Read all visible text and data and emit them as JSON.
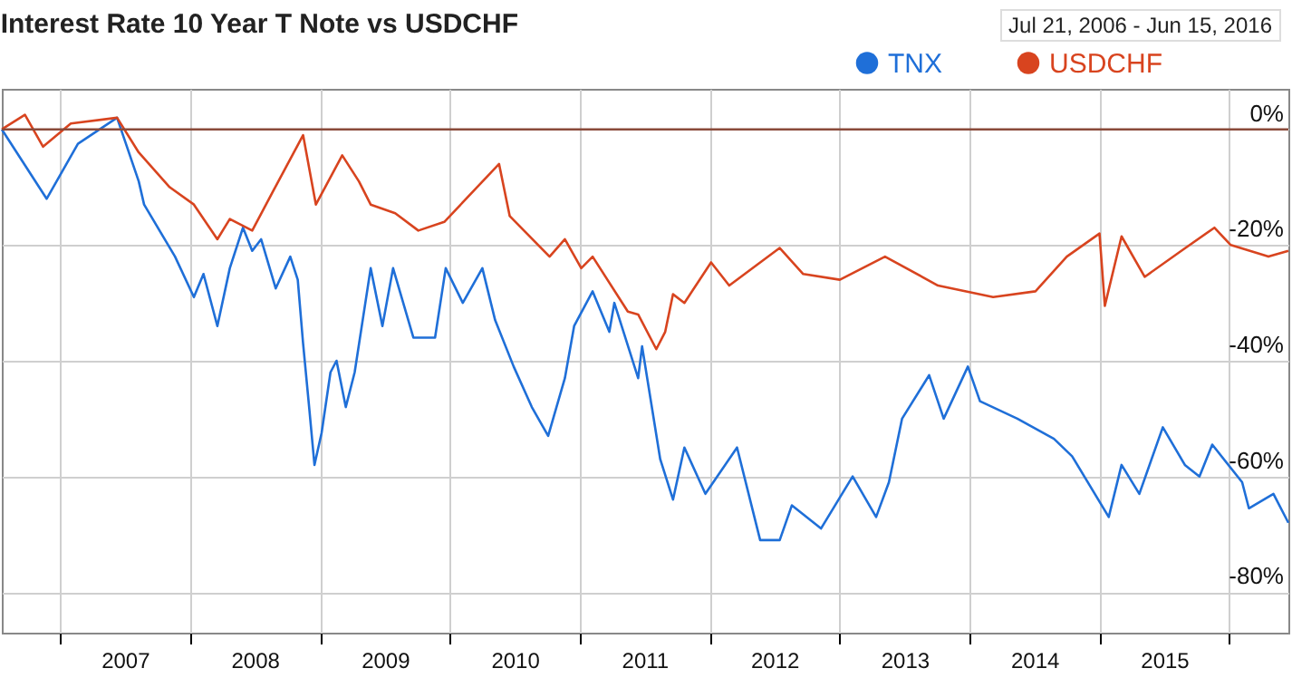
{
  "chart_data": {
    "type": "line",
    "title": "Interest Rate 10 Year T Note vs USDCHF",
    "annotations": [
      "Jul 21, 2006 - Jun 15, 2016"
    ],
    "xlim": [
      "2006-07-21",
      "2016-06-15"
    ],
    "xticks": [
      {
        "value": "2007-01-01",
        "label": null
      },
      {
        "value": "2007-07-02",
        "label": "2007"
      },
      {
        "value": "2008-01-01",
        "label": null
      },
      {
        "value": "2008-07-01",
        "label": "2008"
      },
      {
        "value": "2009-01-01",
        "label": null
      },
      {
        "value": "2009-07-02",
        "label": "2009"
      },
      {
        "value": "2010-01-01",
        "label": null
      },
      {
        "value": "2010-07-02",
        "label": "2010"
      },
      {
        "value": "2011-01-01",
        "label": null
      },
      {
        "value": "2011-07-02",
        "label": "2011"
      },
      {
        "value": "2012-01-01",
        "label": null
      },
      {
        "value": "2012-07-01",
        "label": "2012"
      },
      {
        "value": "2013-01-01",
        "label": null
      },
      {
        "value": "2013-07-02",
        "label": "2013"
      },
      {
        "value": "2014-01-01",
        "label": null
      },
      {
        "value": "2014-07-02",
        "label": "2014"
      },
      {
        "value": "2015-01-01",
        "label": null
      },
      {
        "value": "2015-07-02",
        "label": "2015"
      },
      {
        "value": "2016-01-01",
        "label": null
      }
    ],
    "ylim": [
      -87,
      7
    ],
    "yticks": [
      {
        "value": 0,
        "label": "0%"
      },
      {
        "value": -20,
        "label": "-20%"
      },
      {
        "value": -40,
        "label": "-40%"
      },
      {
        "value": -60,
        "label": "-60%"
      },
      {
        "value": -80,
        "label": "-80%"
      }
    ],
    "grid": true,
    "legend": "top right",
    "line_style": "solid",
    "ref_lines": [
      {
        "axis": "y",
        "value": 0,
        "color": "#8a4a3a"
      }
    ],
    "series": [
      {
        "name": "TNX",
        "color": "#1f6fd8",
        "x": [
          "2006-07-21",
          "2006-11-24",
          "2007-02-20",
          "2007-06-10",
          "2007-08-10",
          "2007-08-25",
          "2007-11-20",
          "2008-01-12",
          "2008-02-08",
          "2008-03-18",
          "2008-04-22",
          "2008-05-29",
          "2008-06-24",
          "2008-07-19",
          "2008-08-29",
          "2008-10-09",
          "2008-10-30",
          "2008-11-14",
          "2008-12-01",
          "2008-12-16",
          "2009-01-05",
          "2009-01-30",
          "2009-02-16",
          "2009-03-14",
          "2009-04-08",
          "2009-05-23",
          "2009-06-25",
          "2009-07-25",
          "2009-09-20",
          "2009-11-20",
          "2009-12-20",
          "2010-02-06",
          "2010-04-02",
          "2010-05-08",
          "2010-06-29",
          "2010-08-19",
          "2010-10-04",
          "2010-11-20",
          "2010-12-16",
          "2011-02-06",
          "2011-03-25",
          "2011-04-08",
          "2011-06-14",
          "2011-06-25",
          "2011-08-15",
          "2011-09-20",
          "2011-10-22",
          "2011-12-20",
          "2012-03-18",
          "2012-05-22",
          "2012-07-16",
          "2012-08-19",
          "2012-11-09",
          "2013-02-06",
          "2013-04-13",
          "2013-05-19",
          "2013-06-25",
          "2013-09-09",
          "2013-10-20",
          "2013-12-27",
          "2014-01-30",
          "2014-05-15",
          "2014-08-26",
          "2014-10-16",
          "2015-01-27",
          "2015-03-04",
          "2015-04-23",
          "2015-06-28",
          "2015-08-29",
          "2015-10-09",
          "2015-11-14",
          "2016-02-06",
          "2016-02-25",
          "2016-05-04",
          "2016-06-15"
        ],
        "values": [
          0,
          -12,
          -2.5,
          2,
          -9,
          -13,
          -22,
          -29,
          -25,
          -34,
          -24,
          -17,
          -21,
          -19,
          -27.5,
          -22,
          -26,
          -37,
          -48,
          -58,
          -52.5,
          -42,
          -40,
          -48,
          -42,
          -24,
          -34,
          -24,
          -36,
          -36,
          -24,
          -30,
          -24,
          -33,
          -41,
          -48,
          -53,
          -43,
          -34,
          -28,
          -35,
          -30,
          -43,
          -37.5,
          -57,
          -64,
          -55,
          -63,
          -55,
          -71,
          -71,
          -65,
          -69,
          -60,
          -67,
          -61,
          -50,
          -42.5,
          -50,
          -41,
          -47,
          -50,
          -53.5,
          -56.5,
          -67,
          -58,
          -63,
          -51.5,
          -58,
          -60,
          -54.5,
          -61,
          -65.5,
          -63,
          -68
        ]
      },
      {
        "name": "USDCHF",
        "color": "#d8441f",
        "x": [
          "2006-07-21",
          "2006-09-24",
          "2006-11-14",
          "2007-01-31",
          "2007-06-10",
          "2007-08-10",
          "2007-11-05",
          "2008-01-12",
          "2008-03-18",
          "2008-04-22",
          "2008-06-24",
          "2008-08-19",
          "2008-11-14",
          "2008-12-20",
          "2009-03-04",
          "2009-04-20",
          "2009-05-23",
          "2009-07-31",
          "2009-10-04",
          "2009-12-16",
          "2010-05-19",
          "2010-06-18",
          "2010-10-08",
          "2010-11-20",
          "2011-01-05",
          "2011-02-06",
          "2011-05-16",
          "2011-06-14",
          "2011-08-04",
          "2011-08-29",
          "2011-09-20",
          "2011-10-22",
          "2012-01-05",
          "2012-02-25",
          "2012-07-16",
          "2012-09-20",
          "2013-01-01",
          "2013-05-08",
          "2013-10-04",
          "2014-03-08",
          "2014-07-05",
          "2014-10-01",
          "2015-01-01",
          "2015-01-16",
          "2015-03-04",
          "2015-05-08",
          "2015-08-19",
          "2015-11-20",
          "2016-01-05",
          "2016-04-20",
          "2016-06-15"
        ],
        "values": [
          0,
          2.5,
          -3,
          1,
          2,
          -4,
          -10,
          -13,
          -19,
          -15.5,
          -17.5,
          -11,
          -1,
          -13,
          -4.5,
          -9,
          -13,
          -14.5,
          -17.5,
          -16,
          -6,
          -15,
          -22,
          -19,
          -24,
          -22,
          -31.5,
          -32,
          -38,
          -35,
          -28.5,
          -30,
          -23,
          -27,
          -20.5,
          -25,
          -26,
          -22,
          -27,
          -29,
          -28,
          -22,
          -18,
          -30.5,
          -18.5,
          -25.5,
          -21,
          -17,
          -20,
          -22,
          -21
        ]
      }
    ]
  }
}
